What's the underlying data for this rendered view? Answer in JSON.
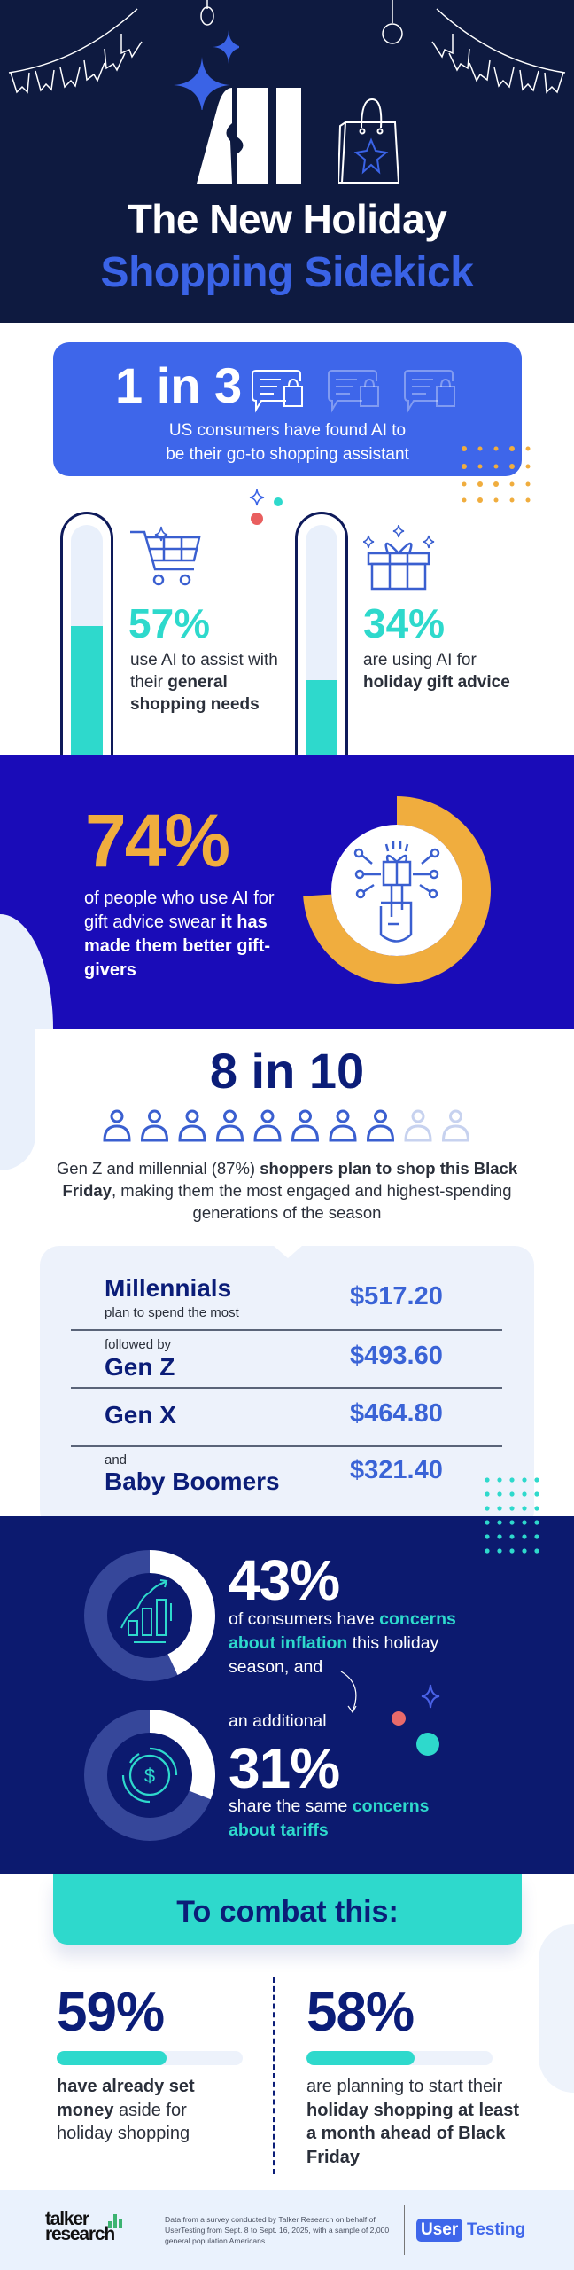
{
  "header": {
    "logo_text": "AI",
    "title_line1": "The New Holiday",
    "title_line2": "Shopping Sidekick"
  },
  "stat_1in3": {
    "headline": "1 in 3",
    "text_line1": "US consumers have found AI to",
    "text_line2": "be their go-to shopping assistant",
    "icons": [
      "chat-bag-icon",
      "chat-bag-icon",
      "chat-bag-icon"
    ],
    "highlighted_icons": 1
  },
  "thermometers": [
    {
      "percent": "57%",
      "value": 57,
      "text_plain": "use AI to assist with their ",
      "text_bold": "general shopping needs",
      "icon": "shopping-cart-icon"
    },
    {
      "percent": "34%",
      "value": 34,
      "text_plain": "are using AI for ",
      "text_bold": "holiday gift advice",
      "icon": "gift-icon"
    }
  ],
  "stat_74": {
    "percent": "74%",
    "value": 74,
    "text_plain": "of people who use AI for gift advice swear",
    "text_bold": "it has made them better gift-givers",
    "icon": "robot-hand-gift-icon"
  },
  "stat_8in10": {
    "headline": "8 in 10",
    "people_total": 10,
    "people_highlighted": 8,
    "text_part1": "Gen Z and millennial (87%) ",
    "text_bold": "shoppers plan to shop this Black Friday",
    "text_part2": ", making them the most engaged and highest-spending generations of the season"
  },
  "spending": [
    {
      "pre": "",
      "generation": "Millennials",
      "post": "plan to spend the most",
      "amount": "$517.20"
    },
    {
      "pre": "followed by",
      "generation": "Gen Z",
      "post": "",
      "amount": "$493.60"
    },
    {
      "pre": "",
      "generation": "Gen X",
      "post": "",
      "amount": "$464.80"
    },
    {
      "pre": "and",
      "generation": "Baby Boomers",
      "post": "",
      "amount": "$321.40"
    }
  ],
  "concerns": {
    "inflation": {
      "percent": "43%",
      "value": 43,
      "t1": "of consumers have ",
      "h1": "concerns about inflation",
      "t2": " this holiday season, and",
      "icon": "rising-chart-icon"
    },
    "connector": "an additional",
    "tariffs": {
      "percent": "31%",
      "value": 31,
      "t1": "share the same ",
      "h1": "concerns about tariffs",
      "icon": "dollar-coin-icon"
    }
  },
  "combat": {
    "title": "To combat this:",
    "items": [
      {
        "percent": "59%",
        "value": 59,
        "bold1": "have already set money",
        "plain1": " aside for holiday shopping",
        "bold2": "",
        "plain0": ""
      },
      {
        "percent": "58%",
        "value": 58,
        "plain0": "are planning to start their ",
        "bold1": "holiday shopping at least a month ahead of Black Friday",
        "plain1": ""
      }
    ]
  },
  "footer": {
    "logo_left": "talker research",
    "note": "Data from a survey conducted by Talker Research on behalf of UserTesting from Sept. 8 to Sept. 16, 2025, with a sample of 2,000 general population Americans.",
    "logo_right_a": "User",
    "logo_right_b": "Testing"
  },
  "colors": {
    "header_bg": "#0e1a40",
    "accent_blue": "#3e66ea",
    "teal": "#2ed9cc",
    "royal_blue": "#1a0cb8",
    "orange": "#f0ad3e",
    "navy": "#0b1d78",
    "dark_section": "#0c1a6f"
  }
}
